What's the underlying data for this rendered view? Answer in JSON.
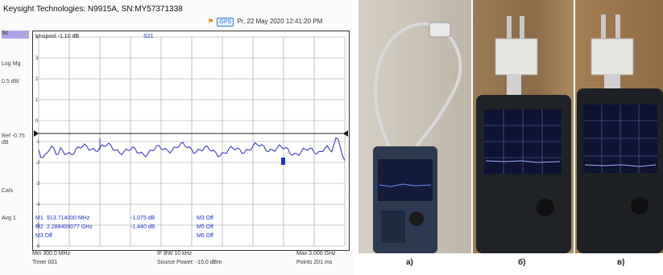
{
  "analyzer": {
    "title": "Keysight Technologies: N9915A, SN:MY57371338",
    "status": {
      "badge": "GPS",
      "time": "Pr, 22 May 2020 12:41:20 PM"
    },
    "trace_header": {
      "label": "Unspool -1.10 dB",
      "mk": "S21"
    },
    "side_buttons": [
      {
        "label": "Sc"
      },
      {
        "label": "Log Mg"
      },
      {
        "label": "0.5 dB/"
      },
      {
        "label": "Ref -0.75 dB"
      },
      {
        "label": "Cals"
      },
      {
        "label": "Avg 1"
      }
    ],
    "y_ticks": [
      "4",
      "3",
      "2",
      "1",
      "0",
      "-1",
      "-2",
      "-3",
      "-4",
      "-5",
      "-6"
    ],
    "markers": [
      {
        "id": "M1",
        "freq": "913.714000 MHz",
        "val": "-1.075 dB",
        "off": "M3 Off"
      },
      {
        "id": "M2",
        "freq": "2.288409077 GHz",
        "val": "-1.440 dB",
        "off": "M5 Off"
      },
      {
        "id": "M3",
        "freq": "M3 Off",
        "val": "",
        "off": "M6 Off"
      }
    ],
    "footer": {
      "start": "Min 300.0 MHz",
      "time": "Timer 001",
      "res": "IF BW 10 kHz",
      "power": "Source Power: -15.0 dBm",
      "stop": "Max 3.000 GHz",
      "pts": "Points 201 ms"
    },
    "colors": {
      "trace": "#3b3ec8",
      "marker": "#1a35c9",
      "selected": "#b0a4e6"
    }
  },
  "photos": {
    "captions": [
      "a)",
      "б)",
      "в)"
    ]
  }
}
